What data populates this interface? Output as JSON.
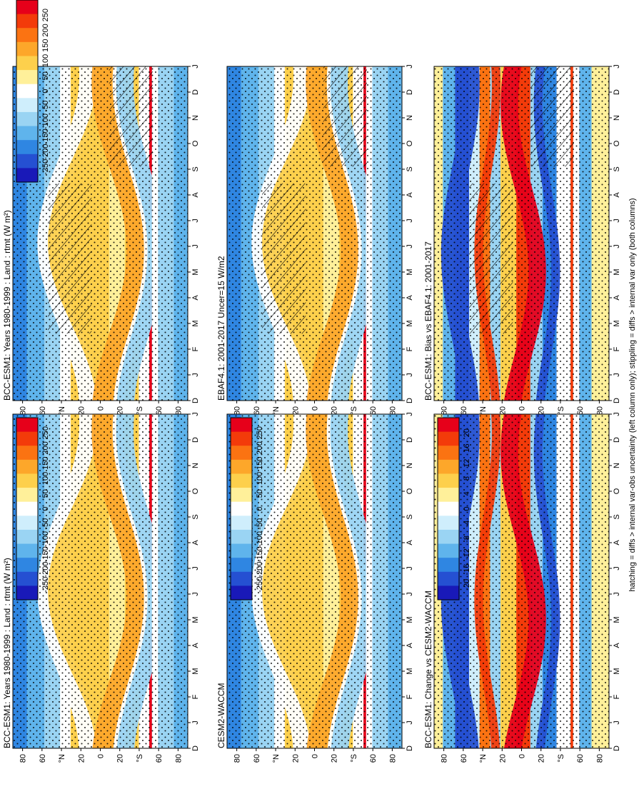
{
  "figure": {
    "footnote": "hatching = diffs > internal var-obs uncertainty (left column only); stippling = diffs > internal var only (both columns)"
  },
  "months": [
    "D",
    "J",
    "F",
    "M",
    "A",
    "M",
    "J",
    "J",
    "A",
    "S",
    "O",
    "N",
    "D",
    "J"
  ],
  "lat_labels": [
    "80",
    "60",
    "°N",
    "20",
    "0",
    "20",
    "°S",
    "60",
    "80"
  ],
  "colorbars": {
    "abs": {
      "ticks": [
        "250",
        "200",
        "150",
        "100",
        "50",
        "0",
        "-50",
        "-100",
        "-150",
        "-200",
        "-250"
      ]
    },
    "diff": {
      "ticks": [
        "20",
        "16",
        "12",
        "8",
        "4",
        "0",
        "-4",
        "-8",
        "-12",
        "-16",
        "-20"
      ]
    }
  },
  "chart_data": [
    {
      "type": "heatmap",
      "id": "p1",
      "title": "BCC-ESM1: Years 1980-1999 : Land : rtmt (W m²)",
      "x_axis": "month",
      "y_axis": "latitude",
      "ylim": [
        -90,
        90
      ],
      "zlim": [
        -250,
        250
      ],
      "overlays": [
        "hatching",
        "stippling"
      ]
    },
    {
      "type": "heatmap",
      "id": "p2",
      "title": "BCC-ESM1: Years 1980-1999 : Land : rtmt (W m²)",
      "x_axis": "month",
      "y_axis": "latitude",
      "ylim": [
        -90,
        90
      ],
      "zlim": [
        -250,
        250
      ],
      "overlays": [
        "stippling"
      ]
    },
    {
      "type": "heatmap",
      "id": "p3",
      "title": "EBAF4.1: 2001-2017 Uncer=15 W/m2",
      "x_axis": "month",
      "y_axis": "latitude",
      "ylim": [
        -90,
        90
      ],
      "zlim": [
        -250,
        250
      ],
      "overlays": [
        "hatching",
        "stippling"
      ]
    },
    {
      "type": "heatmap",
      "id": "p4",
      "title": "CESM2-WACCM",
      "x_axis": "month",
      "y_axis": "latitude",
      "ylim": [
        -90,
        90
      ],
      "zlim": [
        -250,
        250
      ],
      "overlays": [
        "stippling"
      ]
    },
    {
      "type": "heatmap",
      "id": "p5",
      "title": "BCC-ESM1: Bias vs EBAF4.1: 2001-2017",
      "x_axis": "month",
      "y_axis": "latitude",
      "ylim": [
        -90,
        90
      ],
      "zlim": [
        -20,
        20
      ],
      "overlays": [
        "hatching",
        "stippling"
      ]
    },
    {
      "type": "heatmap",
      "id": "p6",
      "title": "BCC-ESM1: Change vs CESM2-WACCM",
      "x_axis": "month",
      "y_axis": "latitude",
      "ylim": [
        -90,
        90
      ],
      "zlim": [
        -20,
        20
      ],
      "overlays": [
        "stippling"
      ]
    }
  ]
}
